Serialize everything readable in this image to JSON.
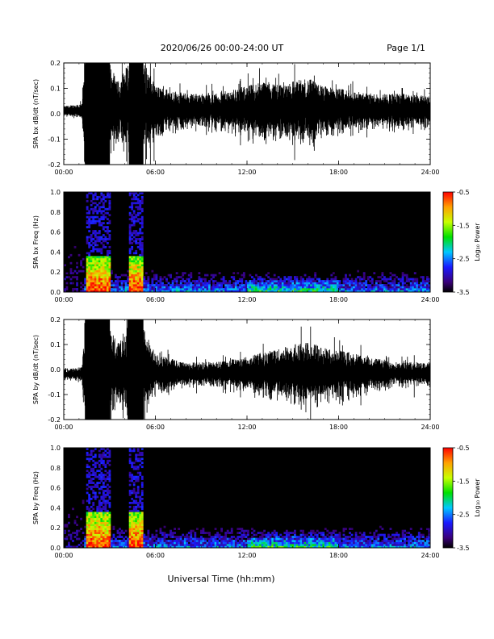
{
  "header": {
    "title": "2020/06/26  00:00-24:00 UT",
    "page": "Page 1/1"
  },
  "xlabel": "Universal Time (hh:mm)",
  "colors": {
    "trace": "#000000",
    "background": "#ffffff",
    "spectrogram_bg": "#000000"
  },
  "chart_data": [
    {
      "id": "bx_wave",
      "type": "line",
      "ylabel": "SPA bx dB/dt (nT/sec)",
      "xlim": [
        0,
        24
      ],
      "ylim": [
        -0.2,
        0.2
      ],
      "x_ticks": [
        "00:00",
        "06:00",
        "12:00",
        "18:00",
        "24:00"
      ],
      "y_ticks": [
        "-0.2",
        "-0.1",
        "0.0",
        "0.1",
        "0.2"
      ],
      "saturated_intervals": [
        [
          1.4,
          3.0
        ],
        [
          4.3,
          5.2
        ]
      ],
      "envelope": {
        "x": [
          0,
          1.2,
          1.4,
          3.0,
          3.5,
          4.3,
          5.2,
          6,
          8,
          10,
          12,
          13,
          14,
          15,
          16,
          17,
          18,
          20,
          22,
          24
        ],
        "amplitude": [
          0.02,
          0.03,
          0.2,
          0.2,
          0.11,
          0.2,
          0.2,
          0.1,
          0.07,
          0.07,
          0.1,
          0.12,
          0.11,
          0.12,
          0.13,
          0.1,
          0.09,
          0.07,
          0.07,
          0.06
        ]
      },
      "baseline": 0.01
    },
    {
      "id": "bx_spec",
      "type": "heatmap",
      "ylabel": "SPA bx Freq (Hz)",
      "xlim": [
        0,
        24
      ],
      "ylim": [
        0,
        1.0
      ],
      "x_ticks": [
        "00:00",
        "06:00",
        "12:00",
        "18:00",
        "24:00"
      ],
      "y_ticks": [
        "0.0",
        "0.2",
        "0.4",
        "0.6",
        "0.8",
        "1.0"
      ],
      "colorbar": {
        "label": "Log₁₀ Power",
        "range": [
          -3.5,
          -0.5
        ],
        "ticks": [
          "-0.5",
          "-1.5",
          "-2.5",
          "-3.5"
        ]
      },
      "bursts": [
        [
          1.5,
          3.0
        ],
        [
          4.3,
          5.2
        ]
      ]
    },
    {
      "id": "by_wave",
      "type": "line",
      "ylabel": "SPA by dB/dt (nT/sec)",
      "xlim": [
        0,
        24
      ],
      "ylim": [
        -0.2,
        0.2
      ],
      "x_ticks": [
        "00:00",
        "06:00",
        "12:00",
        "18:00",
        "24:00"
      ],
      "y_ticks": [
        "-0.2",
        "-0.1",
        "0.0",
        "0.1",
        "0.2"
      ],
      "saturated_intervals": [
        [
          1.4,
          3.0
        ],
        [
          4.2,
          5.2
        ]
      ],
      "envelope": {
        "x": [
          0,
          1.2,
          1.4,
          3.0,
          3.5,
          4.2,
          5.2,
          6,
          8,
          10,
          12,
          13,
          14,
          15,
          16,
          17,
          18,
          20,
          22,
          24
        ],
        "amplitude": [
          0.02,
          0.03,
          0.2,
          0.2,
          0.12,
          0.2,
          0.2,
          0.08,
          0.05,
          0.05,
          0.07,
          0.09,
          0.1,
          0.12,
          0.13,
          0.11,
          0.1,
          0.07,
          0.05,
          0.05
        ]
      },
      "baseline": -0.02
    },
    {
      "id": "by_spec",
      "type": "heatmap",
      "ylabel": "SPA by Freq (Hz)",
      "xlim": [
        0,
        24
      ],
      "ylim": [
        0,
        1.0
      ],
      "x_ticks": [
        "00:00",
        "06:00",
        "12:00",
        "18:00",
        "24:00"
      ],
      "y_ticks": [
        "0.0",
        "0.2",
        "0.4",
        "0.6",
        "0.8",
        "1.0"
      ],
      "colorbar": {
        "label": "Log₁₀ Power",
        "range": [
          -3.5,
          -0.5
        ],
        "ticks": [
          "-0.5",
          "-1.5",
          "-2.5",
          "-3.5"
        ]
      },
      "bursts": [
        [
          1.5,
          3.0
        ],
        [
          4.3,
          5.2
        ]
      ]
    }
  ]
}
